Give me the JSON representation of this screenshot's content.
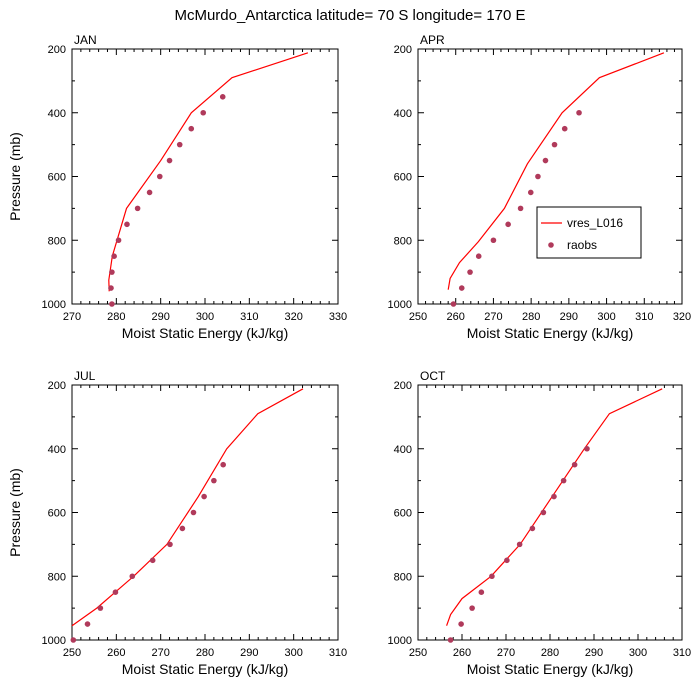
{
  "title": "McMurdo_Antarctica  latitude= 70 S longitude= 170 E",
  "chart_data": [
    {
      "type": "line",
      "panel": "JAN",
      "xlabel": "Moist Static Energy (kJ/kg)",
      "ylabel": "Pressure (mb)",
      "xlim": [
        270,
        330
      ],
      "ylim": [
        1000,
        200
      ],
      "xticks": [
        270,
        280,
        290,
        300,
        310,
        320,
        330
      ],
      "yticks": [
        200,
        400,
        600,
        800,
        1000
      ],
      "series": [
        {
          "name": "vres_L016",
          "style": "line",
          "color": "#ff0000",
          "x": [
            278.4,
            278.3,
            279.1,
            282.3,
            290.0,
            296.9,
            306.1,
            323.2
          ],
          "y": [
            960,
            925,
            850,
            700,
            550,
            400,
            290,
            212
          ]
        },
        {
          "name": "raobs",
          "style": "marker",
          "color": "#b03a5b",
          "x": [
            279.0,
            278.8,
            279.0,
            279.5,
            280.5,
            282.4,
            284.8,
            287.5,
            289.8,
            292.0,
            294.3,
            296.9,
            299.6,
            304.0
          ],
          "y": [
            1000,
            950,
            900,
            850,
            800,
            750,
            700,
            650,
            600,
            550,
            500,
            450,
            400,
            350
          ]
        }
      ]
    },
    {
      "type": "line",
      "panel": "APR",
      "xlabel": "Moist Static Energy (kJ/kg)",
      "ylabel": "",
      "xlim": [
        250,
        320
      ],
      "ylim": [
        1000,
        200
      ],
      "xticks": [
        250,
        260,
        270,
        280,
        290,
        300,
        310,
        320
      ],
      "yticks": [
        200,
        400,
        600,
        800,
        1000
      ],
      "series": [
        {
          "name": "vres_L016",
          "style": "line",
          "color": "#ff0000",
          "x": [
            258.0,
            258.5,
            261.0,
            266.0,
            272.9,
            279.0,
            288.2,
            298.1,
            315.2
          ],
          "y": [
            955,
            920,
            870,
            805,
            700,
            560,
            400,
            290,
            212
          ]
        },
        {
          "name": "raobs",
          "style": "marker",
          "color": "#b03a5b",
          "x": [
            259.4,
            261.6,
            263.8,
            266.1,
            270.0,
            273.9,
            277.2,
            279.9,
            281.8,
            283.8,
            286.2,
            288.9,
            292.7
          ],
          "y": [
            1000,
            950,
            900,
            850,
            800,
            750,
            700,
            650,
            600,
            550,
            500,
            450,
            400
          ]
        }
      ]
    },
    {
      "type": "line",
      "panel": "JUL",
      "xlabel": "Moist Static Energy (kJ/kg)",
      "ylabel": "Pressure (mb)",
      "xlim": [
        250,
        310
      ],
      "ylim": [
        1000,
        200
      ],
      "xticks": [
        250,
        260,
        270,
        280,
        290,
        300,
        310
      ],
      "yticks": [
        200,
        400,
        600,
        800,
        1000
      ],
      "series": [
        {
          "name": "vres_L016",
          "style": "line",
          "color": "#ff0000",
          "x": [
            250.0,
            255.6,
            263.9,
            271.4,
            278.5,
            284.9,
            291.9,
            302.1
          ],
          "y": [
            955,
            900,
            800,
            700,
            550,
            400,
            290,
            212
          ]
        },
        {
          "name": "raobs",
          "style": "marker",
          "color": "#b03a5b",
          "x": [
            250.3,
            253.5,
            256.4,
            259.8,
            263.6,
            268.2,
            272.1,
            274.9,
            277.4,
            279.8,
            282.0,
            284.1
          ],
          "y": [
            1000,
            950,
            900,
            850,
            800,
            750,
            700,
            650,
            600,
            550,
            500,
            450
          ]
        }
      ]
    },
    {
      "type": "line",
      "panel": "OCT",
      "xlabel": "Moist Static Energy (kJ/kg)",
      "ylabel": "",
      "xlim": [
        250,
        310
      ],
      "ylim": [
        1000,
        200
      ],
      "xticks": [
        250,
        260,
        270,
        280,
        290,
        300,
        310
      ],
      "yticks": [
        200,
        400,
        600,
        800,
        1000
      ],
      "series": [
        {
          "name": "vres_L016",
          "style": "line",
          "color": "#ff0000",
          "x": [
            256.5,
            257.4,
            260.0,
            266.6,
            273.2,
            280.0,
            287.8,
            293.5,
            305.5
          ],
          "y": [
            955,
            920,
            870,
            800,
            700,
            560,
            400,
            290,
            212
          ]
        },
        {
          "name": "raobs",
          "style": "marker",
          "color": "#b03a5b",
          "x": [
            257.4,
            259.8,
            262.3,
            264.4,
            266.8,
            270.2,
            273.1,
            276.0,
            278.5,
            280.9,
            283.1,
            285.6,
            288.4
          ],
          "y": [
            1000,
            950,
            900,
            850,
            800,
            750,
            700,
            650,
            600,
            550,
            500,
            450,
            400
          ]
        }
      ]
    }
  ],
  "legend": {
    "items": [
      {
        "label": "vres_L016",
        "style": "line",
        "color": "#ff0000"
      },
      {
        "label": "raobs",
        "style": "marker",
        "color": "#b03a5b"
      }
    ]
  }
}
